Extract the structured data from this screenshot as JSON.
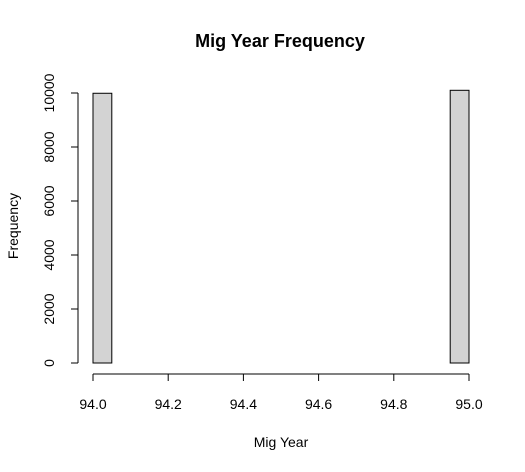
{
  "chart_data": {
    "type": "bar",
    "title": "Mig Year Frequency",
    "xlabel": "Mig Year",
    "ylabel": "Frequency",
    "xlim": [
      94.0,
      95.0
    ],
    "ylim": [
      0,
      10000
    ],
    "x_ticks": [
      {
        "value": 94.0,
        "label": "94.0"
      },
      {
        "value": 94.2,
        "label": "94.2"
      },
      {
        "value": 94.4,
        "label": "94.4"
      },
      {
        "value": 94.6,
        "label": "94.6"
      },
      {
        "value": 94.8,
        "label": "94.8"
      },
      {
        "value": 95.0,
        "label": "95.0"
      }
    ],
    "y_ticks": [
      {
        "value": 0,
        "label": "0"
      },
      {
        "value": 2000,
        "label": "2000"
      },
      {
        "value": 4000,
        "label": "4000"
      },
      {
        "value": 6000,
        "label": "6000"
      },
      {
        "value": 8000,
        "label": "8000"
      },
      {
        "value": 10000,
        "label": "10000"
      }
    ],
    "bins": [
      {
        "start": 94.0,
        "end": 94.05,
        "count": 9990
      },
      {
        "start": 94.05,
        "end": 94.1,
        "count": 0
      },
      {
        "start": 94.1,
        "end": 94.15,
        "count": 0
      },
      {
        "start": 94.15,
        "end": 94.2,
        "count": 0
      },
      {
        "start": 94.2,
        "end": 94.25,
        "count": 0
      },
      {
        "start": 94.25,
        "end": 94.3,
        "count": 0
      },
      {
        "start": 94.3,
        "end": 94.35,
        "count": 0
      },
      {
        "start": 94.35,
        "end": 94.4,
        "count": 0
      },
      {
        "start": 94.4,
        "end": 94.45,
        "count": 0
      },
      {
        "start": 94.45,
        "end": 94.5,
        "count": 0
      },
      {
        "start": 94.5,
        "end": 94.55,
        "count": 0
      },
      {
        "start": 94.55,
        "end": 94.6,
        "count": 0
      },
      {
        "start": 94.6,
        "end": 94.65,
        "count": 0
      },
      {
        "start": 94.65,
        "end": 94.7,
        "count": 0
      },
      {
        "start": 94.7,
        "end": 94.75,
        "count": 0
      },
      {
        "start": 94.75,
        "end": 94.8,
        "count": 0
      },
      {
        "start": 94.8,
        "end": 94.85,
        "count": 0
      },
      {
        "start": 94.85,
        "end": 94.9,
        "count": 0
      },
      {
        "start": 94.9,
        "end": 94.95,
        "count": 0
      },
      {
        "start": 94.95,
        "end": 95.0,
        "count": 10100
      }
    ],
    "bar_fill": "#d3d3d3",
    "bar_stroke": "#000000",
    "grid": false
  }
}
